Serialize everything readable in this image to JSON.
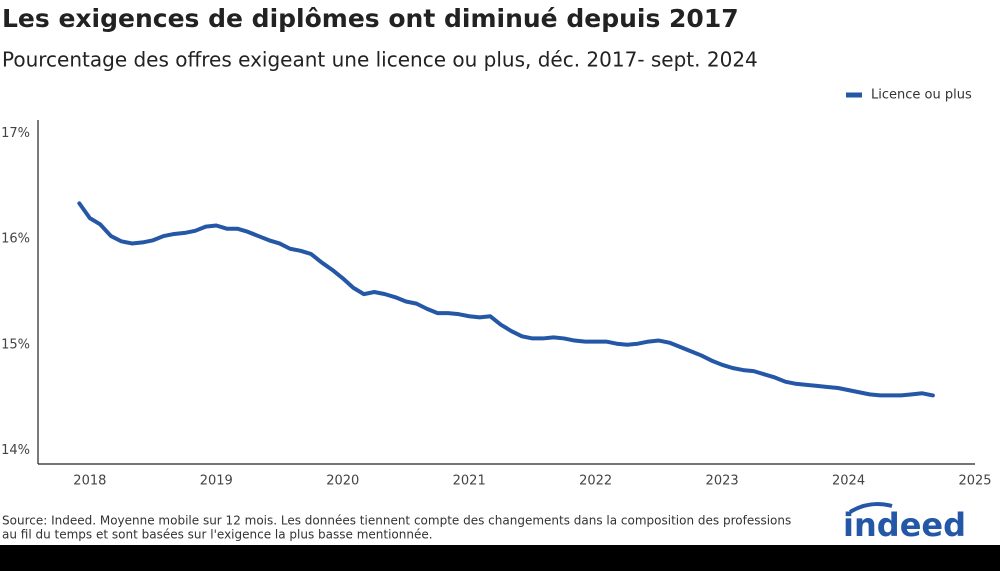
{
  "chart_data": {
    "type": "line",
    "title": "Les exigences de diplômes ont diminué depuis 2017",
    "subtitle": "Pourcentage des offres exigeant une licence ou plus, déc. 2017- sept. 2024",
    "source": [
      "Source: Indeed. Moyenne mobile sur 12 mois. Les données tiennent compte des changements dans la composition des professions",
      "au fil du temps et sont basées sur l'exigence la plus basse mentionnée."
    ],
    "logo": "indeed",
    "legend": "top-right",
    "x": [
      2017.917,
      2018.0,
      2018.083,
      2018.167,
      2018.25,
      2018.333,
      2018.417,
      2018.5,
      2018.583,
      2018.667,
      2018.75,
      2018.833,
      2018.917,
      2019.0,
      2019.083,
      2019.167,
      2019.25,
      2019.333,
      2019.417,
      2019.5,
      2019.583,
      2019.667,
      2019.75,
      2019.833,
      2019.917,
      2020.0,
      2020.083,
      2020.167,
      2020.25,
      2020.333,
      2020.417,
      2020.5,
      2020.583,
      2020.667,
      2020.75,
      2020.833,
      2020.917,
      2021.0,
      2021.083,
      2021.167,
      2021.25,
      2021.333,
      2021.417,
      2021.5,
      2021.583,
      2021.667,
      2021.75,
      2021.833,
      2021.917,
      2022.0,
      2022.083,
      2022.167,
      2022.25,
      2022.333,
      2022.417,
      2022.5,
      2022.583,
      2022.667,
      2022.75,
      2022.833,
      2022.917,
      2023.0,
      2023.083,
      2023.167,
      2023.25,
      2023.333,
      2023.417,
      2023.5,
      2023.583,
      2023.667,
      2023.75,
      2023.833,
      2023.917,
      2024.0,
      2024.083,
      2024.167,
      2024.25,
      2024.333,
      2024.417,
      2024.5,
      2024.583,
      2024.667
    ],
    "series": [
      {
        "name": "Licence ou plus",
        "color": "#2557a7",
        "values": [
          16.34,
          16.2,
          16.14,
          16.03,
          15.98,
          15.96,
          15.97,
          15.99,
          16.03,
          16.05,
          16.06,
          16.08,
          16.12,
          16.13,
          16.1,
          16.1,
          16.07,
          16.03,
          15.99,
          15.96,
          15.91,
          15.89,
          15.86,
          15.78,
          15.71,
          15.63,
          15.54,
          15.48,
          15.5,
          15.48,
          15.45,
          15.41,
          15.39,
          15.34,
          15.3,
          15.3,
          15.29,
          15.27,
          15.26,
          15.27,
          15.19,
          15.13,
          15.08,
          15.06,
          15.06,
          15.07,
          15.06,
          15.04,
          15.03,
          15.03,
          15.03,
          15.01,
          15.0,
          15.01,
          15.03,
          15.04,
          15.02,
          14.98,
          14.94,
          14.9,
          14.85,
          14.81,
          14.78,
          14.76,
          14.75,
          14.72,
          14.69,
          14.65,
          14.63,
          14.62,
          14.61,
          14.6,
          14.59,
          14.57,
          14.55,
          14.53,
          14.52,
          14.52,
          14.52,
          14.53,
          14.54,
          14.52
        ]
      }
    ],
    "xlim": [
      2017.59,
      2025.0
    ],
    "xticks": [
      2018,
      2019,
      2020,
      2021,
      2022,
      2023,
      2024,
      2025
    ],
    "ylim": [
      13.87,
      17.13
    ],
    "yticks": [
      {
        "value": 14,
        "label": "14%"
      },
      {
        "value": 15,
        "label": "15%"
      },
      {
        "value": 16,
        "label": "16%"
      },
      {
        "value": 17,
        "label": "17%"
      }
    ]
  }
}
